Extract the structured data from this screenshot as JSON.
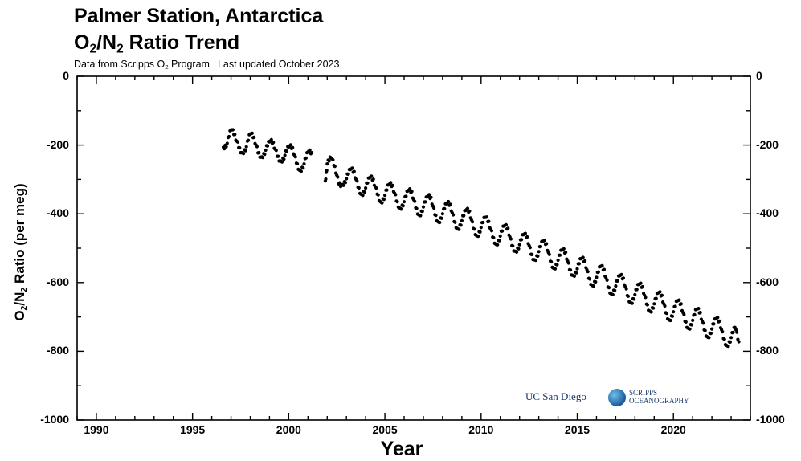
{
  "header": {
    "title_line1": "Palmer Station, Antarctica",
    "title_line2_a": "O",
    "title_line2_sub1": "2",
    "title_line2_b": "/N",
    "title_line2_sub2": "2",
    "title_line2_c": " Ratio Trend",
    "subtitle_a": "Data from Scripps O",
    "subtitle_sub": "2",
    "subtitle_b": " Program",
    "subtitle_c": "Last updated October 2023"
  },
  "logos": {
    "ucsd": "UC San Diego",
    "scripps_line1": "SCRIPPS",
    "scripps_line2": "OCEANOGRAPHY"
  },
  "chart_data": {
    "type": "scatter",
    "xlabel": "Year",
    "ylabel_a": "O",
    "ylabel_sub1": "2",
    "ylabel_b": "/N",
    "ylabel_sub2": "2",
    "ylabel_c": " Ratio (per meg)",
    "xlim": [
      1989,
      2024
    ],
    "ylim": [
      -1000,
      0
    ],
    "x_ticks": [
      1990,
      1995,
      2000,
      2005,
      2010,
      2015,
      2020
    ],
    "y_ticks": [
      0,
      -200,
      -400,
      -600,
      -800,
      -1000
    ],
    "grid": false,
    "marker_color": "#000000",
    "segments": [
      {
        "x": [
          1996.6,
          1996.8,
          1997.0,
          1997.2,
          1997.4,
          1997.6,
          1997.8,
          1998.0,
          1998.2,
          1998.4,
          1998.6,
          1998.8,
          1999.0,
          1999.2,
          1999.4,
          1999.6,
          1999.8,
          2000.0,
          2000.2,
          2000.4,
          2000.6,
          2000.8,
          2001.0,
          2001.2
        ],
        "y": [
          -212,
          -195,
          -150,
          -172,
          -205,
          -228,
          -205,
          -162,
          -180,
          -220,
          -240,
          -215,
          -185,
          -195,
          -230,
          -252,
          -230,
          -200,
          -210,
          -250,
          -280,
          -255,
          -215,
          -225
        ]
      },
      {
        "x": [
          2001.9,
          2002.0,
          2002.2,
          2002.4,
          2002.6,
          2002.8,
          2003.0,
          2003.2,
          2003.4,
          2003.6,
          2003.8,
          2004.0,
          2004.2,
          2004.4,
          2004.6,
          2004.8,
          2005.0,
          2005.2,
          2005.4,
          2005.6,
          2005.8,
          2006.0,
          2006.2,
          2006.4,
          2006.6,
          2006.8,
          2007.0,
          2007.2,
          2007.4,
          2007.6,
          2007.8,
          2008.0,
          2008.2,
          2008.4,
          2008.6,
          2008.8,
          2009.0,
          2009.2,
          2009.4,
          2009.6,
          2009.8,
          2010.0,
          2010.2,
          2010.4,
          2010.6,
          2010.8,
          2011.0,
          2011.2,
          2011.4,
          2011.6,
          2011.8,
          2012.0,
          2012.2,
          2012.4,
          2012.6,
          2012.8,
          2013.0,
          2013.2,
          2013.4,
          2013.6,
          2013.8,
          2014.0,
          2014.2,
          2014.4,
          2014.6,
          2014.8,
          2015.0,
          2015.2,
          2015.4,
          2015.6,
          2015.8,
          2016.0,
          2016.2,
          2016.4,
          2016.6,
          2016.8,
          2017.0,
          2017.2,
          2017.4,
          2017.6,
          2017.8,
          2018.0,
          2018.2,
          2018.4,
          2018.6,
          2018.8,
          2019.0,
          2019.2,
          2019.4,
          2019.6,
          2019.8,
          2020.0,
          2020.2,
          2020.4,
          2020.6,
          2020.8,
          2021.0,
          2021.2,
          2021.4,
          2021.6,
          2021.8,
          2022.0,
          2022.2,
          2022.4,
          2022.6,
          2022.8,
          2023.0,
          2023.2,
          2023.4
        ],
        "y": [
          -310,
          -255,
          -232,
          -265,
          -310,
          -320,
          -298,
          -266,
          -280,
          -320,
          -350,
          -325,
          -290,
          -302,
          -340,
          -372,
          -346,
          -310,
          -320,
          -360,
          -390,
          -365,
          -328,
          -338,
          -380,
          -410,
          -380,
          -345,
          -355,
          -400,
          -430,
          -400,
          -365,
          -375,
          -420,
          -450,
          -420,
          -385,
          -395,
          -440,
          -470,
          -440,
          -405,
          -425,
          -465,
          -495,
          -465,
          -430,
          -445,
          -490,
          -515,
          -490,
          -455,
          -470,
          -515,
          -540,
          -510,
          -475,
          -490,
          -535,
          -565,
          -535,
          -500,
          -515,
          -560,
          -585,
          -560,
          -525,
          -540,
          -585,
          -615,
          -585,
          -548,
          -565,
          -610,
          -640,
          -610,
          -575,
          -590,
          -635,
          -665,
          -635,
          -600,
          -615,
          -660,
          -690,
          -662,
          -625,
          -640,
          -685,
          -715,
          -685,
          -648,
          -665,
          -710,
          -740,
          -710,
          -672,
          -690,
          -735,
          -765,
          -735,
          -700,
          -715,
          -760,
          -790,
          -760,
          -725,
          -775
        ]
      }
    ]
  }
}
